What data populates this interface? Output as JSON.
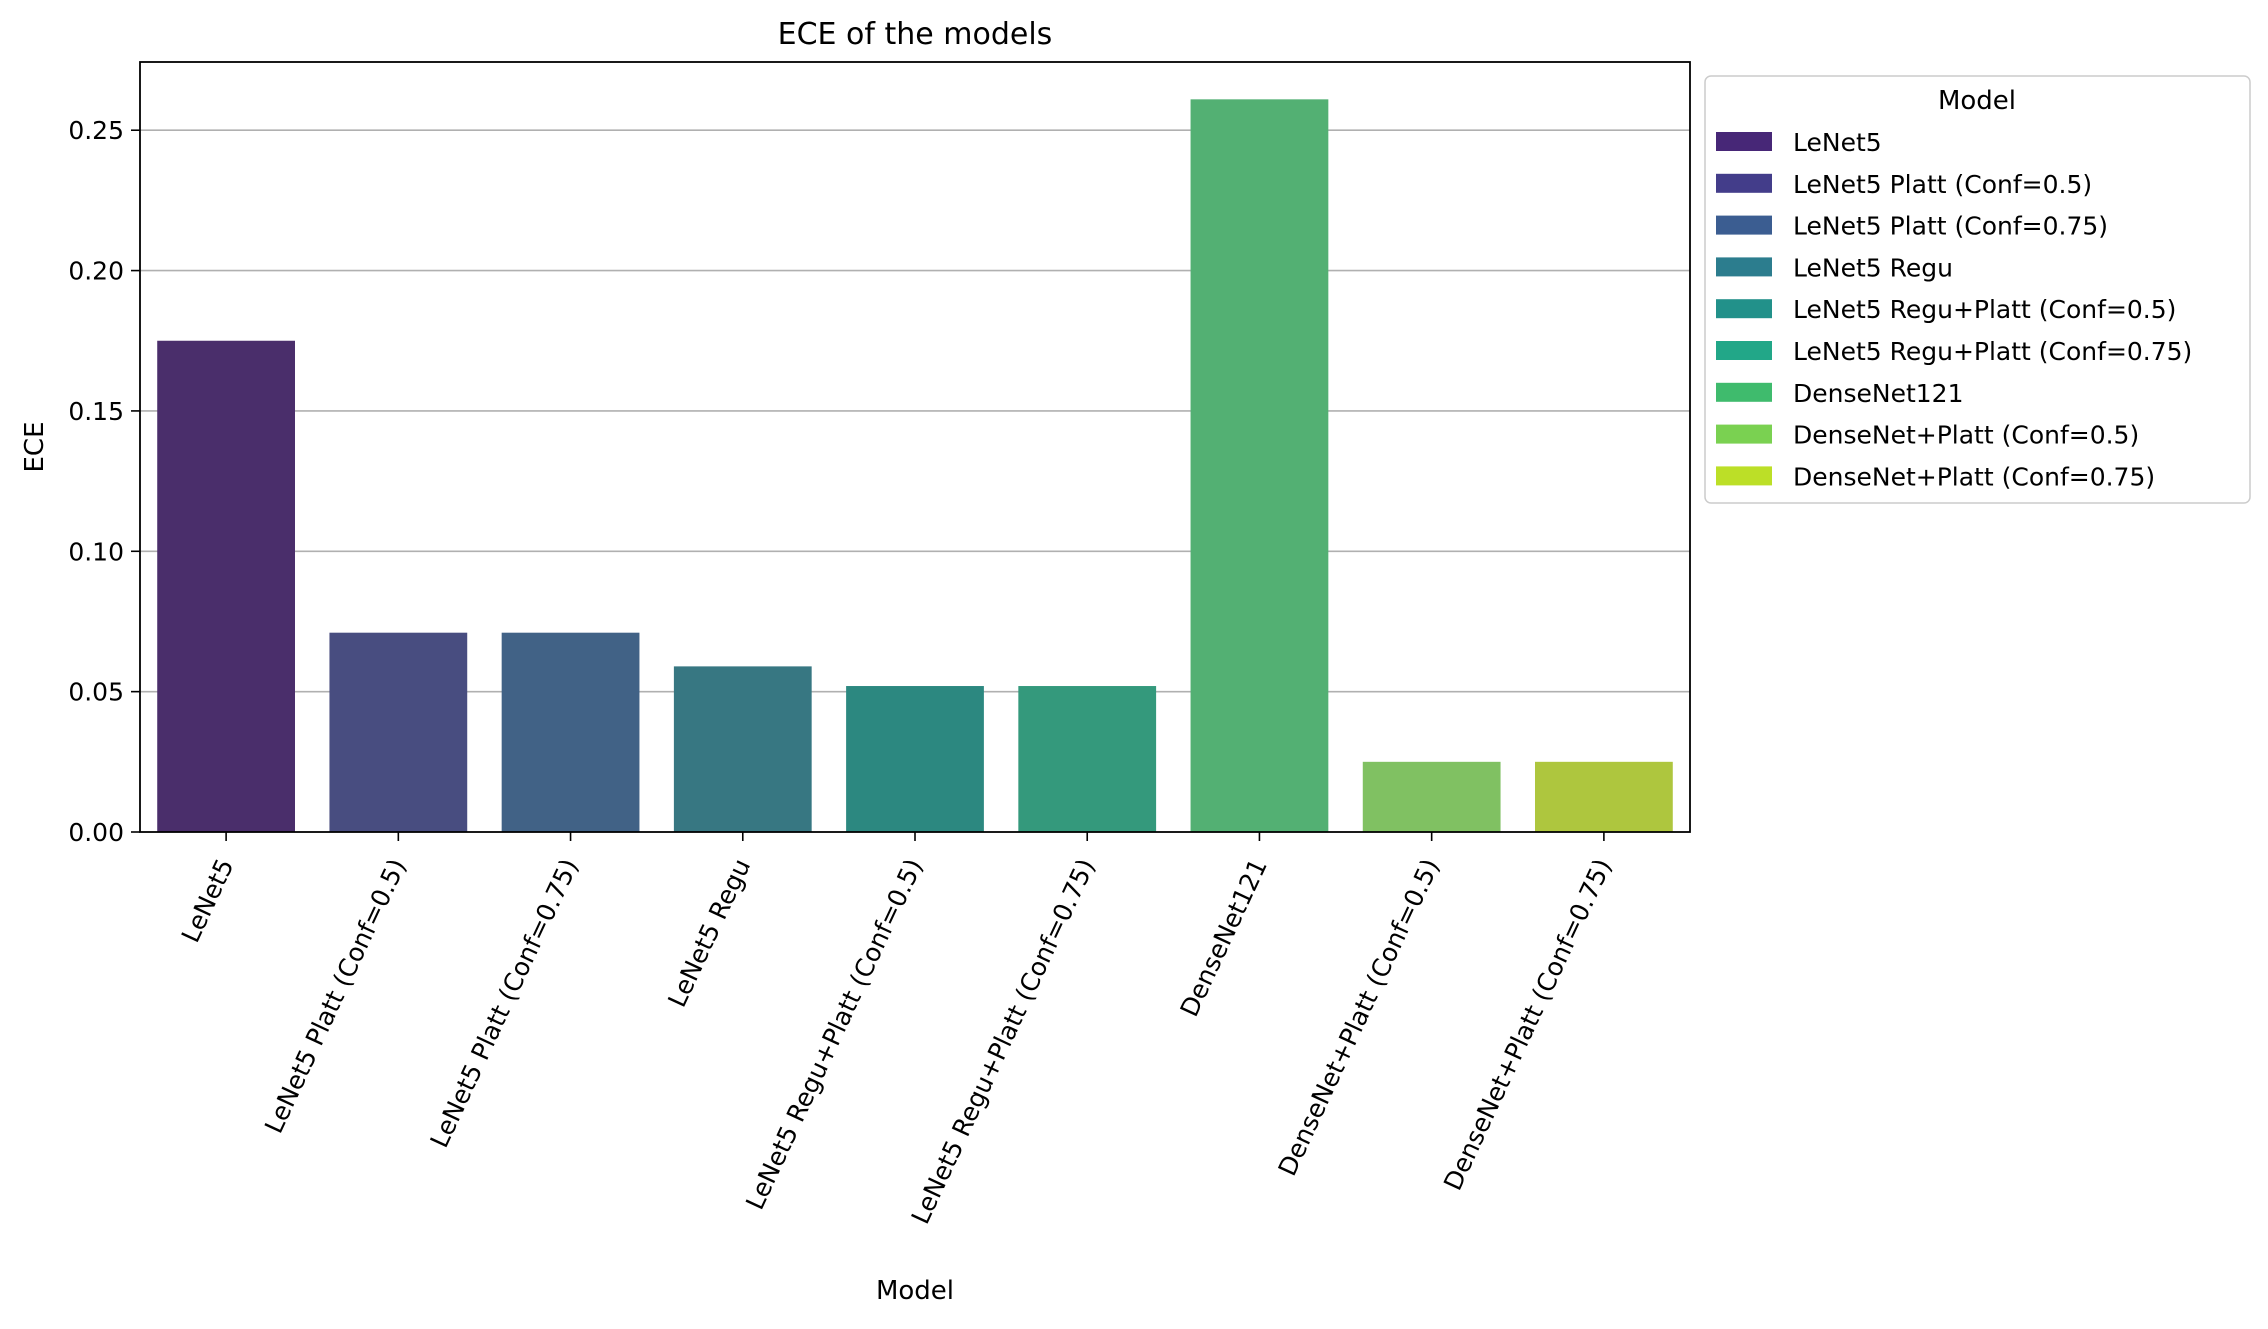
{
  "chart_data": {
    "type": "bar",
    "title": "ECE of the models",
    "xlabel": "Model",
    "ylabel": "ECE",
    "ylim": [
      0,
      0.2743
    ],
    "yticks": [
      0.0,
      0.05,
      0.1,
      0.15,
      0.2,
      0.25
    ],
    "ytick_labels": [
      "0.00",
      "0.05",
      "0.10",
      "0.15",
      "0.20",
      "0.25"
    ],
    "grid": "horizontal",
    "legend_title": "Model",
    "legend_placement": "outside upper right",
    "categories": [
      "LeNet5",
      "LeNet5 Platt (Conf=0.5)",
      "LeNet5 Platt (Conf=0.75)",
      "LeNet5 Regu",
      "LeNet5 Regu+Platt (Conf=0.5)",
      "LeNet5 Regu+Platt (Conf=0.75)",
      "DenseNet121",
      "DenseNet+Platt (Conf=0.5)",
      "DenseNet+Platt (Conf=0.75)"
    ],
    "values": [
      0.175,
      0.071,
      0.071,
      0.059,
      0.052,
      0.052,
      0.261,
      0.025,
      0.025
    ],
    "bar_colors": [
      "#4a2e6b",
      "#484d80",
      "#416286",
      "#377782",
      "#2c8880",
      "#34997c",
      "#53b073",
      "#80c162",
      "#aec63e"
    ],
    "legend_colors": [
      "#472777",
      "#433d8a",
      "#3b5d91",
      "#2c7d8e",
      "#22918a",
      "#22a788",
      "#3fbb6d",
      "#7ad151",
      "#bcdf27"
    ]
  }
}
